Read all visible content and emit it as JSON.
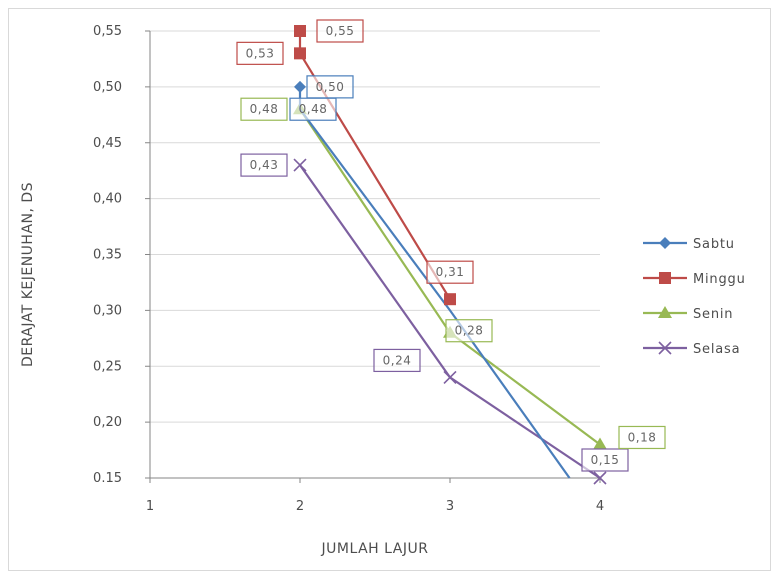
{
  "chart_data": {
    "type": "line",
    "title": "",
    "xlabel": "JUMLAH LAJUR",
    "ylabel": "DERAJAT KEJENUHAN, DS",
    "xlim": [
      1,
      4
    ],
    "ylim": [
      0.15,
      0.55
    ],
    "x_ticks": [
      "1",
      "2",
      "3",
      "4"
    ],
    "y_ticks": [
      "0.15",
      "0,20",
      "0,25",
      "0,30",
      "0,35",
      "0,40",
      "0,45",
      "0,50",
      "0,55"
    ],
    "grid": "horizontal",
    "legend_position": "right",
    "series": [
      {
        "name": "Sabtu",
        "color": "#4a7ebb",
        "marker": "diamond",
        "points": [
          {
            "x": 2,
            "y": 0.5,
            "label": "0,50"
          },
          {
            "x": 2,
            "y": 0.48,
            "label": "0,48"
          },
          {
            "x": 3,
            "y": 0.3,
            "label": ""
          },
          {
            "x": 3.85,
            "y": 0.14,
            "label": ""
          }
        ]
      },
      {
        "name": "Minggu",
        "color": "#be4b48",
        "marker": "square",
        "points": [
          {
            "x": 2,
            "y": 0.55,
            "label": "0,55"
          },
          {
            "x": 2,
            "y": 0.53,
            "label": "0,53"
          },
          {
            "x": 3,
            "y": 0.31,
            "label": "0,31"
          }
        ]
      },
      {
        "name": "Senin",
        "color": "#98b954",
        "marker": "triangle",
        "points": [
          {
            "x": 2,
            "y": 0.48,
            "label": "0,48"
          },
          {
            "x": 3,
            "y": 0.28,
            "label": "0,28"
          },
          {
            "x": 4,
            "y": 0.18,
            "label": "0,18"
          }
        ]
      },
      {
        "name": "Selasa",
        "color": "#7d60a0",
        "marker": "x",
        "points": [
          {
            "x": 2,
            "y": 0.43,
            "label": "0,43"
          },
          {
            "x": 3,
            "y": 0.24,
            "label": "0,24"
          },
          {
            "x": 4,
            "y": 0.15,
            "label": "0,15"
          }
        ]
      }
    ]
  }
}
